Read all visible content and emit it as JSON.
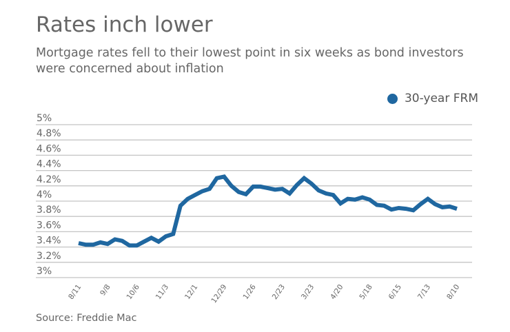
{
  "title": "Rates inch lower",
  "subtitle": "Mortgage rates fell to their lowest point in six weeks as bond investors were concerned about inflation",
  "source": "Source: Freddie Mac",
  "chart_data": {
    "type": "line",
    "title": "Rates inch lower",
    "xlabel": "",
    "ylabel": "",
    "ylim": [
      3,
      5
    ],
    "yticks": [
      "3%",
      "3.2%",
      "3.4%",
      "3.6%",
      "3.8%",
      "4%",
      "4.2%",
      "4.4%",
      "4.6%",
      "4.8%",
      "5%"
    ],
    "xtick_labels": [
      "8/11",
      "9/8",
      "10/6",
      "11/3",
      "12/1",
      "12/29",
      "1/26",
      "2/23",
      "3/23",
      "4/20",
      "5/18",
      "6/15",
      "7/13",
      "8/10"
    ],
    "grid": true,
    "legend_position": "top-right",
    "series": [
      {
        "name": "30-year FRM",
        "color": "#1f67a0",
        "values": [
          3.45,
          3.43,
          3.43,
          3.46,
          3.44,
          3.5,
          3.48,
          3.42,
          3.42,
          3.47,
          3.52,
          3.47,
          3.54,
          3.57,
          3.94,
          4.03,
          4.08,
          4.13,
          4.16,
          4.3,
          4.32,
          4.2,
          4.12,
          4.09,
          4.19,
          4.19,
          4.17,
          4.15,
          4.16,
          4.1,
          4.21,
          4.3,
          4.23,
          4.14,
          4.1,
          4.08,
          3.97,
          4.03,
          4.02,
          4.05,
          4.02,
          3.95,
          3.94,
          3.89,
          3.91,
          3.9,
          3.88,
          3.96,
          4.03,
          3.96,
          3.92,
          3.93,
          3.9
        ]
      }
    ]
  }
}
